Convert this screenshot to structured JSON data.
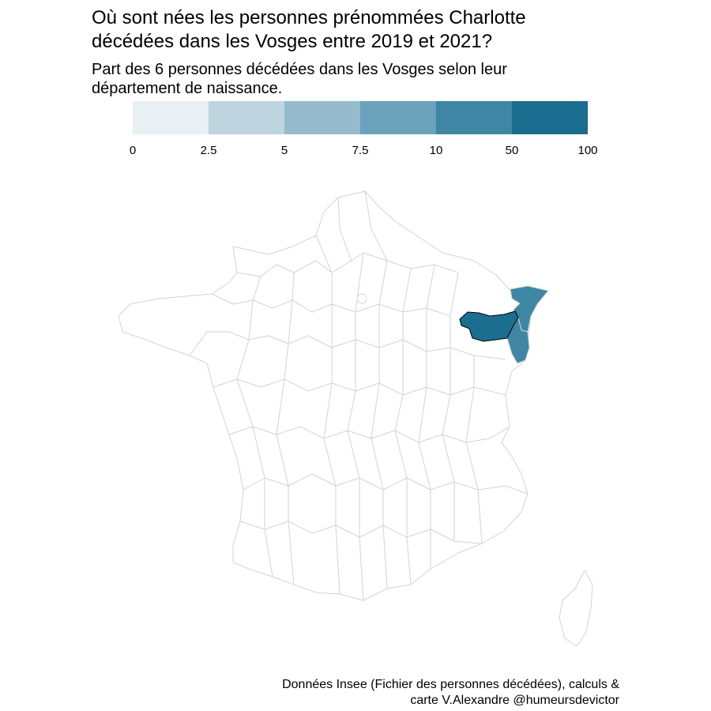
{
  "header": {
    "title_line1": "Où sont nées les personnes prénommées Charlotte",
    "title_line2": "décédées dans les Vosges entre 2019 et 2021?",
    "subtitle_line1": "Part des 6 personnes décédées dans les Vosges selon leur",
    "subtitle_line2": "département de naissance."
  },
  "legend": {
    "ticks": [
      "0",
      "2.5",
      "5",
      "7.5",
      "10",
      "50",
      "100"
    ],
    "colors": [
      "#e8f0f3",
      "#bed5df",
      "#94bacb",
      "#6aa2bb",
      "#3f86a4",
      "#1b6e8f"
    ]
  },
  "map": {
    "border_color": "#d3d3d3",
    "fill_none": "#ffffff",
    "highlight_departments": [
      {
        "name": "Vosges",
        "class": "50 - 100",
        "color": "#1b6e8f"
      },
      {
        "name": "Bas-Rhin",
        "class": "10 - 50",
        "color": "#3f86a4"
      },
      {
        "name": "Haut-Rhin",
        "class": "10 - 50",
        "color": "#3f86a4"
      }
    ]
  },
  "caption": {
    "line1": "Données Insee (Fichier des personnes décédées), calculs &",
    "line2": "carte V.Alexandre @humeursdevictor"
  }
}
